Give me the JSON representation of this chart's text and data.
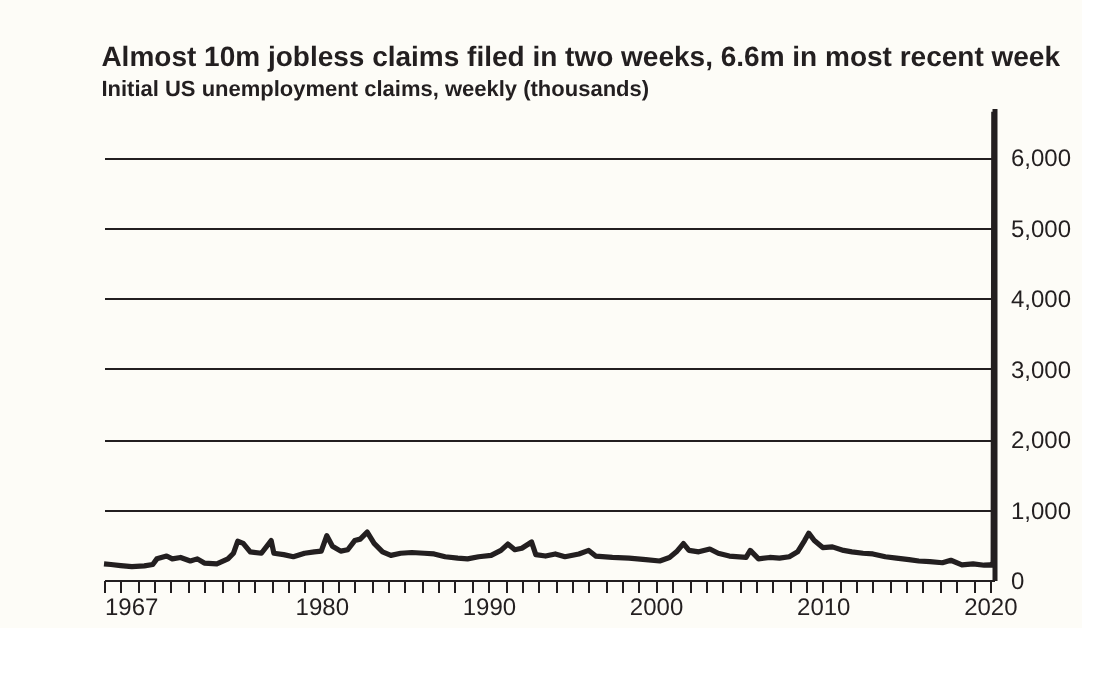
{
  "chart_data": {
    "type": "line",
    "title": "Almost 10m jobless claims filed in two weeks, 6.6m in most recent week",
    "subtitle": "Initial US unemployment claims, weekly (thousands)",
    "x": [
      "1967-01",
      "1967-06",
      "1968-01",
      "1968-09",
      "1969-06",
      "1969-12",
      "1970-03",
      "1970-10",
      "1971-02",
      "1971-08",
      "1972-03",
      "1972-08",
      "1973-01",
      "1973-10",
      "1974-06",
      "1974-10",
      "1975-01",
      "1975-05",
      "1975-10",
      "1976-06",
      "1977-01",
      "1977-03",
      "1977-10",
      "1978-05",
      "1979-01",
      "1979-08",
      "1980-01",
      "1980-05",
      "1980-09",
      "1981-03",
      "1981-08",
      "1982-01",
      "1982-05",
      "1982-10",
      "1983-03",
      "1983-09",
      "1984-03",
      "1984-10",
      "1985-06",
      "1986-03",
      "1986-10",
      "1987-06",
      "1988-03",
      "1988-10",
      "1989-06",
      "1990-03",
      "1990-10",
      "1991-03",
      "1991-08",
      "1992-01",
      "1992-08",
      "1992-11",
      "1993-06",
      "1994-01",
      "1994-08",
      "1995-06",
      "1996-01",
      "1996-06",
      "1997-06",
      "1998-06",
      "1999-06",
      "2000-04",
      "2000-11",
      "2001-04",
      "2001-09",
      "2002-01",
      "2002-08",
      "2003-04",
      "2003-10",
      "2004-06",
      "2005-06",
      "2005-09",
      "2006-03",
      "2006-11",
      "2007-06",
      "2008-01",
      "2008-07",
      "2008-12",
      "2009-03",
      "2009-07",
      "2010-01",
      "2010-08",
      "2011-04",
      "2011-10",
      "2012-06",
      "2013-01",
      "2013-10",
      "2014-06",
      "2015-03",
      "2015-10",
      "2016-06",
      "2017-03",
      "2017-09",
      "2018-05",
      "2019-01",
      "2019-09",
      "2020-01",
      "2020-03-07",
      "2020-03-14",
      "2020-03-21",
      "2020-03-28"
    ],
    "series": [
      {
        "color": "#231f20",
        "values": [
          230,
          220,
          205,
          190,
          200,
          220,
          300,
          340,
          300,
          320,
          270,
          300,
          240,
          230,
          300,
          380,
          550,
          520,
          400,
          380,
          560,
          380,
          360,
          330,
          380,
          400,
          410,
          630,
          480,
          410,
          430,
          560,
          580,
          680,
          520,
          400,
          350,
          380,
          390,
          380,
          370,
          330,
          310,
          300,
          330,
          350,
          420,
          510,
          430,
          450,
          540,
          360,
          340,
          370,
          330,
          370,
          420,
          340,
          320,
          310,
          290,
          270,
          320,
          400,
          517,
          420,
          400,
          440,
          380,
          340,
          320,
          420,
          300,
          320,
          310,
          330,
          400,
          560,
          665,
          560,
          460,
          470,
          420,
          400,
          380,
          370,
          330,
          310,
          290,
          270,
          260,
          245,
          280,
          215,
          230,
          210,
          215,
          211,
          282,
          3307,
          6648
        ]
      }
    ],
    "xlim": [
      "1967-01-01",
      "2020-04-01"
    ],
    "xticks": [
      {
        "value": "1967",
        "label": "1967"
      },
      {
        "value": "1968",
        "label": null
      },
      {
        "value": "1969",
        "label": null
      },
      {
        "value": "1970",
        "label": null
      },
      {
        "value": "1971",
        "label": null
      },
      {
        "value": "1972",
        "label": null
      },
      {
        "value": "1973",
        "label": null
      },
      {
        "value": "1974",
        "label": null
      },
      {
        "value": "1975",
        "label": null
      },
      {
        "value": "1976",
        "label": null
      },
      {
        "value": "1977",
        "label": null
      },
      {
        "value": "1978",
        "label": null
      },
      {
        "value": "1979",
        "label": null
      },
      {
        "value": "1980",
        "label": "1980"
      },
      {
        "value": "1981",
        "label": null
      },
      {
        "value": "1982",
        "label": null
      },
      {
        "value": "1983",
        "label": null
      },
      {
        "value": "1984",
        "label": null
      },
      {
        "value": "1985",
        "label": null
      },
      {
        "value": "1986",
        "label": null
      },
      {
        "value": "1987",
        "label": null
      },
      {
        "value": "1988",
        "label": null
      },
      {
        "value": "1989",
        "label": null
      },
      {
        "value": "1990",
        "label": "1990"
      },
      {
        "value": "1991",
        "label": null
      },
      {
        "value": "1992",
        "label": null
      },
      {
        "value": "1993",
        "label": null
      },
      {
        "value": "1994",
        "label": null
      },
      {
        "value": "1995",
        "label": null
      },
      {
        "value": "1996",
        "label": null
      },
      {
        "value": "1997",
        "label": null
      },
      {
        "value": "1998",
        "label": null
      },
      {
        "value": "1999",
        "label": null
      },
      {
        "value": "2000",
        "label": "2000"
      },
      {
        "value": "2001",
        "label": null
      },
      {
        "value": "2002",
        "label": null
      },
      {
        "value": "2003",
        "label": null
      },
      {
        "value": "2004",
        "label": null
      },
      {
        "value": "2005",
        "label": null
      },
      {
        "value": "2006",
        "label": null
      },
      {
        "value": "2007",
        "label": null
      },
      {
        "value": "2008",
        "label": null
      },
      {
        "value": "2009",
        "label": null
      },
      {
        "value": "2010",
        "label": "2010"
      },
      {
        "value": "2011",
        "label": null
      },
      {
        "value": "2012",
        "label": null
      },
      {
        "value": "2013",
        "label": null
      },
      {
        "value": "2014",
        "label": null
      },
      {
        "value": "2015",
        "label": null
      },
      {
        "value": "2016",
        "label": null
      },
      {
        "value": "2017",
        "label": null
      },
      {
        "value": "2018",
        "label": null
      },
      {
        "value": "2019",
        "label": null
      },
      {
        "value": "2020",
        "label": "2020"
      }
    ],
    "ylim": [
      0,
      6700
    ],
    "yticks": [
      {
        "value": 0,
        "label": "0"
      },
      {
        "value": 1000,
        "label": "1,000"
      },
      {
        "value": 2000,
        "label": "2,000"
      },
      {
        "value": 3000,
        "label": "3,000"
      },
      {
        "value": 4000,
        "label": "4,000"
      },
      {
        "value": 5000,
        "label": "5,000"
      },
      {
        "value": 6000,
        "label": "6,000"
      }
    ],
    "grid": "y",
    "marker": "none",
    "line_style": "solid"
  }
}
